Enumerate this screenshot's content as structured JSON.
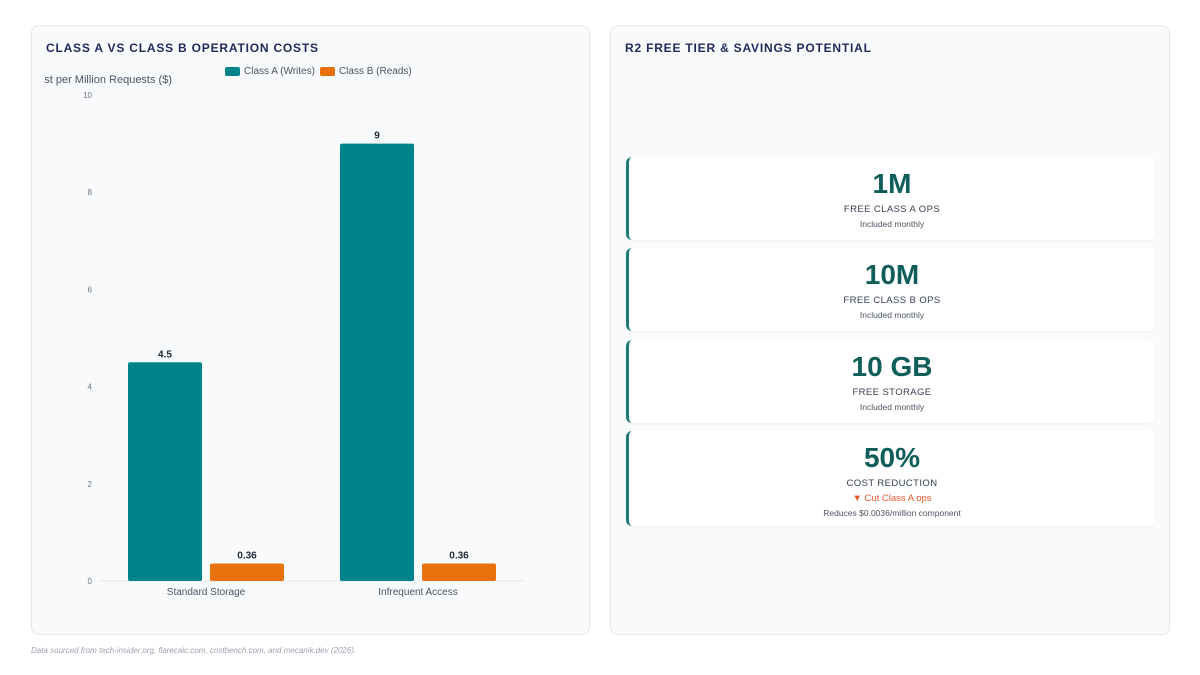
{
  "left_panel": {
    "title": "CLASS A VS CLASS B OPERATION COSTS"
  },
  "chart_data": {
    "type": "bar",
    "title": "CLASS A VS CLASS B OPERATION COSTS",
    "categories": [
      "Standard Storage",
      "Infrequent Access"
    ],
    "series": [
      {
        "name": "Class A (Writes)",
        "values": [
          4.5,
          9
        ],
        "color": "#00838a"
      },
      {
        "name": "Class B (Reads)",
        "values": [
          0.36,
          0.36
        ],
        "color": "#e8710c"
      }
    ],
    "ylabel": "Cost per Million Requests ($)",
    "ylabel_visible": "st per Million Requests ($)",
    "ylim": [
      0,
      10
    ],
    "yticks": [
      0,
      2,
      4,
      6,
      8,
      10
    ],
    "data_labels": [
      [
        "4.5",
        "0.36"
      ],
      [
        "9",
        "0.36"
      ]
    ],
    "legend_position": "top",
    "grid": false
  },
  "right_panel": {
    "title": "R2 FREE TIER & SAVINGS POTENTIAL",
    "cards": [
      {
        "value": "1M",
        "label": "FREE CLASS A OPS",
        "sub": "Included monthly"
      },
      {
        "value": "10M",
        "label": "FREE CLASS B OPS",
        "sub": "Included monthly"
      },
      {
        "value": "10 GB",
        "label": "FREE STORAGE",
        "sub": "Included monthly"
      },
      {
        "value": "50%",
        "label": "COST REDUCTION",
        "trend": "▼ Cut Class A ops",
        "sub": "Reduces $0.0036/million component"
      }
    ]
  },
  "footnote": "Data sourced from tech-insider.org, flarecalc.com, costbench.com, and mecanik.dev (2026).",
  "colors": {
    "class_a": "#00838a",
    "class_b": "#e8710c",
    "title": "#1e2a5a",
    "stat_value": "#0f5e59",
    "trend_down": "#e4572e"
  }
}
